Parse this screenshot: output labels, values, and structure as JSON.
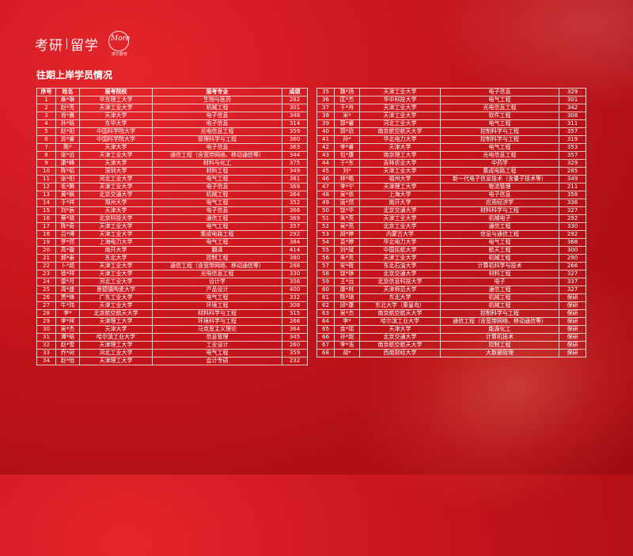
{
  "brand": {
    "text_left": "考研",
    "text_right": "留学",
    "logo_mark": "More",
    "logo_tag": "摩尔教育"
  },
  "title": "往期上岸学员情况",
  "columns": [
    "序号",
    "姓名",
    "报考院校",
    "报考专业",
    "成绩"
  ],
  "rows": [
    [
      "1",
      "桑*琳",
      "华东理工大学",
      "生物与医药",
      "282"
    ],
    [
      "2",
      "赵*亮",
      "天津工业大学",
      "机械工程",
      "301"
    ],
    [
      "3",
      "肖*晨",
      "天津大学",
      "电子信息",
      "348"
    ],
    [
      "4",
      "孙*晗",
      "东华大学",
      "电子信息",
      "314"
    ],
    [
      "5",
      "赵*阳",
      "中国科学院大学",
      "光电信息工程",
      "359"
    ],
    [
      "6",
      "苏*睿",
      "中国科学院大学",
      "管理科学与工程",
      "360"
    ],
    [
      "7",
      "陈*",
      "天津大学",
      "电子信息",
      "363"
    ],
    [
      "8",
      "张*远",
      "天津工业大学",
      "通信工程（含宽带网络、移动通信等）",
      "344"
    ],
    [
      "9",
      "康*峰",
      "天津大学",
      "材料与化工",
      "375"
    ],
    [
      "10",
      "陈*昭",
      "深圳大学",
      "材料工程",
      "349"
    ],
    [
      "11",
      "张*阳",
      "河北工业大学",
      "电气工程",
      "361"
    ],
    [
      "12",
      "毛*腾",
      "天津工业大学",
      "电子信息",
      "369"
    ],
    [
      "13",
      "黄*枫",
      "北京交通大学",
      "机械工程",
      "364"
    ],
    [
      "14",
      "于*祥",
      "郑州大学",
      "电气工程",
      "352"
    ],
    [
      "15",
      "刘*辰",
      "天津大学",
      "电子信息",
      "366"
    ],
    [
      "16",
      "蔡*晓",
      "北京科技大学",
      "通信工程",
      "369"
    ],
    [
      "17",
      "陈*奇",
      "天津工业大学",
      "电气工程",
      "357"
    ],
    [
      "18",
      "吕*博",
      "天津工业大学",
      "集成电路工程",
      "292"
    ],
    [
      "19",
      "罗*然",
      "上海电力大学",
      "电气工程",
      "384"
    ],
    [
      "20",
      "高*璇",
      "南开大学",
      "翻译",
      "414"
    ],
    [
      "21",
      "郝*泰",
      "东北大学",
      "控制工程",
      "380"
    ],
    [
      "22",
      "卜*超",
      "天津工业大学",
      "通信工程（含宽带网络、移动通信等）",
      "288"
    ],
    [
      "23",
      "徐*祥",
      "天津工业大学",
      "光电信息工程",
      "330"
    ],
    [
      "24",
      "雷*月",
      "河北工业大学",
      "设计学",
      "356"
    ],
    [
      "25",
      "周*盛",
      "景德镇陶瓷大学",
      "产品设计",
      "400"
    ],
    [
      "26",
      "贾*锋",
      "广东工业大学",
      "电气工程",
      "332"
    ],
    [
      "27",
      "牛*玮",
      "天津工业大学",
      "环境工程",
      "308"
    ],
    [
      "28",
      "李*",
      "北京航空航天大学",
      "材料科学与工程",
      "315"
    ],
    [
      "29",
      "李*祥",
      "天津理工大学",
      "环境科学与工程",
      "268"
    ],
    [
      "30",
      "吴*杰",
      "天津大学",
      "马克思主义理论",
      "364"
    ],
    [
      "31",
      "谭*晗",
      "哈尔滨工业大学",
      "信息管理",
      "345"
    ],
    [
      "32",
      "赵*雪",
      "天津理工大学",
      "工业设计",
      "260"
    ],
    [
      "33",
      "乔*珂",
      "河北工业大学",
      "电气工程",
      "359"
    ],
    [
      "34",
      "赵*怡",
      "天津理工大学",
      "会计专硕",
      "232"
    ],
    [
      "35",
      "魏*扬",
      "天津工业大学",
      "电子信息",
      "329"
    ],
    [
      "36",
      "匡*杰",
      "华中科技大学",
      "电气工程",
      "301"
    ],
    [
      "37",
      "于*舟",
      "天津工业大学",
      "光电信息工程",
      "342"
    ],
    [
      "38",
      "米*",
      "天津工业大学",
      "软件工程",
      "308"
    ],
    [
      "39",
      "郭*睿",
      "河北工业大学",
      "电气工程",
      "311"
    ],
    [
      "40",
      "郭*欣",
      "南京航空航天大学",
      "控制科学与工程",
      "357"
    ],
    [
      "41",
      "孙*",
      "华北电力大学",
      "控制科学与工程",
      "319"
    ],
    [
      "42",
      "李*睿",
      "天津大学",
      "电气工程",
      "353"
    ],
    [
      "43",
      "包*康",
      "南京理工大学",
      "光电信息工程",
      "357"
    ],
    [
      "44",
      "于*东",
      "吉林农业大学",
      "中药学",
      "329"
    ],
    [
      "45",
      "刘*",
      "天津工业大学",
      "集成电路工程",
      "285"
    ],
    [
      "46",
      "林*皓",
      "福州大学",
      "新一代电子信息技术（含量子技术等）",
      "349"
    ],
    [
      "47",
      "李*宁",
      "天津理工大学",
      "物流管理",
      "211"
    ],
    [
      "48",
      "吴*依",
      "上海大学",
      "电子信息",
      "358"
    ],
    [
      "49",
      "唐*然",
      "南开大学",
      "应用经济学",
      "336"
    ],
    [
      "50",
      "饶*华",
      "北京交通大学",
      "材料科学与工程",
      "327"
    ],
    [
      "51",
      "朱*亮",
      "天津工业大学",
      "机械电子",
      "292"
    ],
    [
      "52",
      "吴*亮",
      "北京工业大学",
      "通信工程",
      "330"
    ],
    [
      "53",
      "胡*婷",
      "内蒙古大学",
      "信息与通信工程",
      "292"
    ],
    [
      "54",
      "袁*婷",
      "华北电力大学",
      "电气工程",
      "368"
    ],
    [
      "55",
      "刘*斌",
      "中国民航大学",
      "航天工程",
      "300"
    ],
    [
      "56",
      "朱*亮",
      "天津工业大学",
      "机械工程",
      "290"
    ],
    [
      "57",
      "安*筱",
      "东北石油大学",
      "计算机科学与技术",
      "266"
    ],
    [
      "58",
      "饶*铮",
      "北京交通大学",
      "材料工程",
      "327"
    ],
    [
      "59",
      "王*远",
      "北京信息科技大学",
      "电子",
      "337"
    ],
    [
      "60",
      "康*林",
      "天津师范大学",
      "通信工程",
      "327"
    ],
    [
      "61",
      "陈*琦",
      "东北大学",
      "机械工程",
      "保研"
    ],
    [
      "62",
      "邱*康",
      "东北大学（秦皇岛）",
      "机械工程",
      "保研"
    ],
    [
      "63",
      "吴*杰",
      "南京航空航天大学",
      "控制科学与工程",
      "保研"
    ],
    [
      "64",
      "李*",
      "哈尔滨工业大学",
      "通信工程（含宽带网络、移动通信等）",
      "保研"
    ],
    [
      "65",
      "金*瑶",
      "天津大学",
      "能源化工",
      "保研"
    ],
    [
      "66",
      "孙*超",
      "北京交通大学",
      "计算机技术",
      "保研"
    ],
    [
      "67",
      "李*浩",
      "南京航空航天大学",
      "控制工程",
      "保研"
    ],
    [
      "68",
      "胡*",
      "西南财经大学",
      "大数据管理",
      "保研"
    ]
  ],
  "colors": {
    "background": "#c9161c",
    "text": "#ffffff",
    "grid": "#ffffff"
  }
}
